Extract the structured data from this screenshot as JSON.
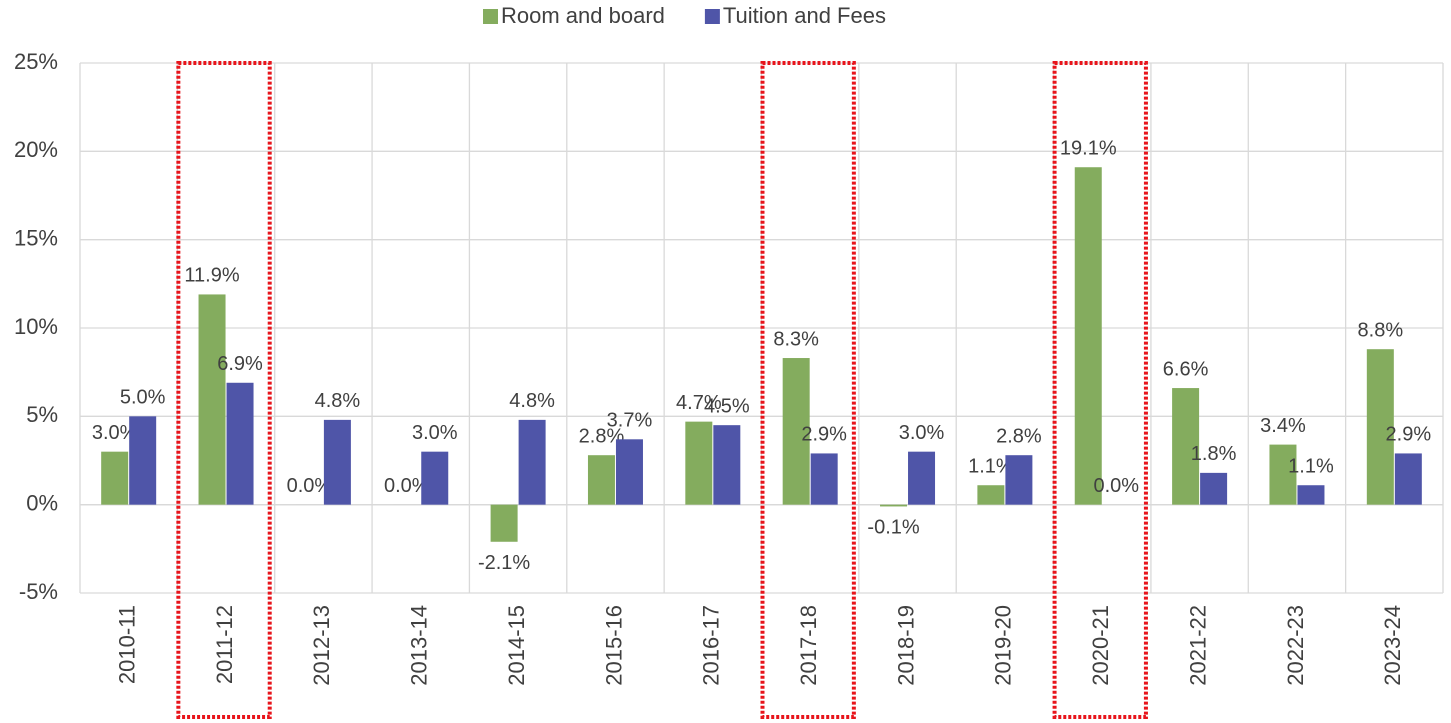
{
  "chart_data": {
    "type": "bar",
    "categories": [
      "2010-11",
      "2011-12",
      "2012-13",
      "2013-14",
      "2014-15",
      "2015-16",
      "2016-17",
      "2017-18",
      "2018-19",
      "2019-20",
      "2020-21",
      "2021-22",
      "2022-23",
      "2023-24"
    ],
    "series": [
      {
        "name": "Room and board",
        "color": "#84ac5e",
        "values": [
          3.0,
          11.9,
          0.0,
          0.0,
          -2.1,
          2.8,
          4.7,
          8.3,
          -0.1,
          1.1,
          19.1,
          6.6,
          3.4,
          8.8
        ],
        "value_labels": [
          "3.0%",
          "11.9%",
          "0.0%",
          "0.0%",
          "-2.1%",
          "2.8%",
          "4.7%",
          "8.3%",
          "-0.1%",
          "1.1%",
          "19.1%",
          "6.6%",
          "3.4%",
          "8.8%"
        ]
      },
      {
        "name": "Tuition and Fees",
        "color": "#4f55a8",
        "values": [
          5.0,
          6.9,
          4.8,
          3.0,
          4.8,
          3.7,
          4.5,
          2.9,
          3.0,
          2.8,
          0.0,
          1.8,
          1.1,
          2.9
        ],
        "value_labels": [
          "5.0%",
          "6.9%",
          "4.8%",
          "3.0%",
          "4.8%",
          "3.7%",
          "4.5%",
          "2.9%",
          "3.0%",
          "2.8%",
          "0.0%",
          "1.8%",
          "1.1%",
          "2.9%"
        ]
      }
    ],
    "ylim": [
      -5,
      25
    ],
    "yticks": [
      {
        "value": -5,
        "label": "-5%"
      },
      {
        "value": 0,
        "label": "0%"
      },
      {
        "value": 5,
        "label": "5%"
      },
      {
        "value": 10,
        "label": "10%"
      },
      {
        "value": 15,
        "label": "15%"
      },
      {
        "value": 20,
        "label": "20%"
      },
      {
        "value": 25,
        "label": "25%"
      }
    ],
    "grid": true,
    "legend": "top",
    "highlight": [
      1,
      7,
      10
    ],
    "highlight_color": "#e8141b"
  }
}
